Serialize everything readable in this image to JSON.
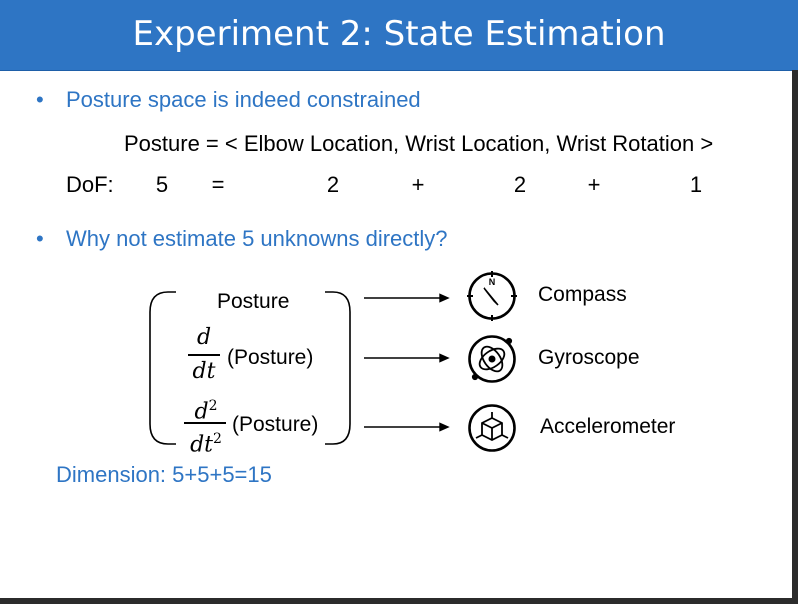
{
  "title": "Experiment 2: State Estimation",
  "bullets": [
    "Posture space is indeed constrained",
    "Why not estimate 5 unknowns directly?"
  ],
  "posture_equation": "Posture = < Elbow Location, Wrist Location, Wrist Rotation >",
  "dof_row": {
    "label": "DoF:",
    "cells": [
      "5",
      "=",
      "2",
      "+",
      "2",
      "+",
      "1"
    ]
  },
  "diagram": {
    "rows": [
      {
        "term": "Posture",
        "sensor": "Compass",
        "icon": "compass-icon"
      },
      {
        "term": "(Posture)",
        "numerator": "d",
        "denominator": "dt",
        "sensor": "Gyroscope",
        "icon": "gyroscope-icon"
      },
      {
        "term": "(Posture)",
        "numerator": "d",
        "numerator_exp": "2",
        "denominator": "dt",
        "denominator_exp": "2",
        "sensor": "Accelerometer",
        "icon": "accelerometer-icon"
      }
    ]
  },
  "dimension_text": "Dimension: 5+5+5=15",
  "colors": {
    "accent": "#2e75c4",
    "text": "#000000",
    "background": "#ffffff"
  }
}
